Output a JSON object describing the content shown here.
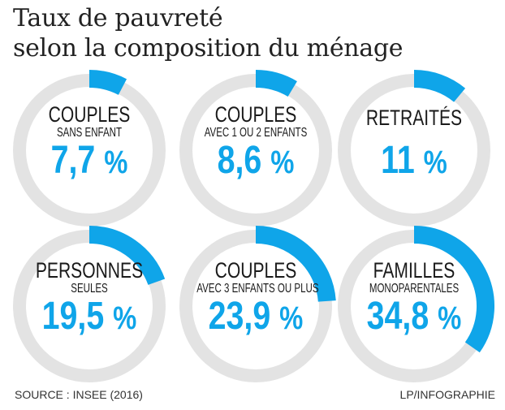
{
  "title": {
    "line1": "Taux de pauvreté",
    "line2": "selon la composition du ménage"
  },
  "colors": {
    "accent": "#0fa5e9",
    "track": "#e3e3e3",
    "text": "#1a1a1a"
  },
  "chart_data": {
    "type": "donut",
    "unit": "%",
    "items": [
      {
        "category": "COUPLES",
        "subtitle": "SANS ENFANT",
        "value": 7.7,
        "label": "7,7",
        "pct": "%"
      },
      {
        "category": "COUPLES",
        "subtitle": "AVEC 1 OU 2 ENFANTS",
        "value": 8.6,
        "label": "8,6",
        "pct": "%"
      },
      {
        "category": "RETRAITÉS",
        "subtitle": "",
        "value": 11,
        "label": "11",
        "pct": "%"
      },
      {
        "category": "PERSONNES",
        "subtitle": "SEULES",
        "value": 19.5,
        "label": "19,5",
        "pct": "%"
      },
      {
        "category": "COUPLES",
        "subtitle": "AVEC 3 ENFANTS OU PLUS",
        "value": 23.9,
        "label": "23,9",
        "pct": "%"
      },
      {
        "category": "FAMILLES",
        "subtitle": "MONOPARENTALES",
        "value": 34.8,
        "label": "34,8",
        "pct": "%"
      }
    ]
  },
  "footer": {
    "source": "SOURCE : INSEE (2016)",
    "credit": "LP/INFOGRAPHIE"
  }
}
